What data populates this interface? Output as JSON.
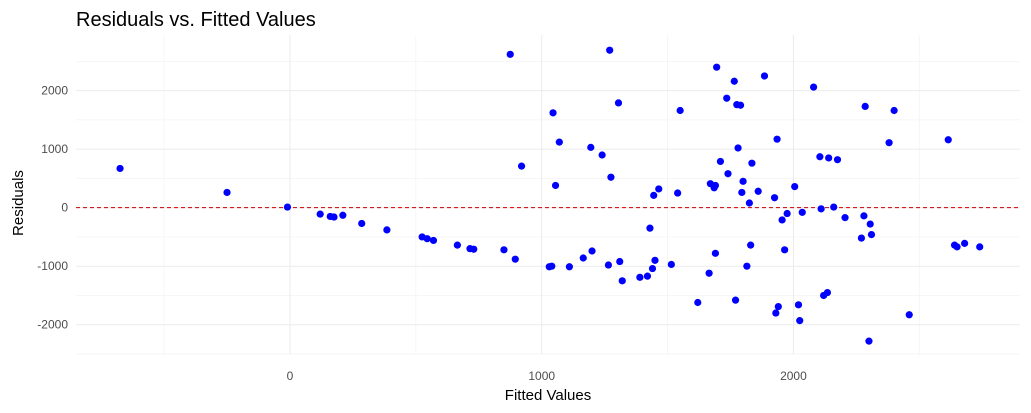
{
  "chart_data": {
    "type": "scatter",
    "title": "Residuals vs. Fitted Values",
    "xlabel": "Fitted Values",
    "ylabel": "Residuals",
    "xlim": [
      -850,
      2900
    ],
    "ylim": [
      -2500,
      2950
    ],
    "x_ticks": [
      0,
      1000,
      2000
    ],
    "y_ticks": [
      -2000,
      -1000,
      0,
      1000,
      2000
    ],
    "x_tick_labels": [
      "0",
      "1000",
      "2000"
    ],
    "y_tick_labels": [
      "-2000",
      "-1000",
      "0",
      "1000",
      "2000"
    ],
    "grid": true,
    "reference_line": {
      "y": 0,
      "style": "dashed",
      "color": "#cc0000"
    },
    "point_color": "#0000ff",
    "points": [
      {
        "x": -675,
        "y": 670
      },
      {
        "x": -250,
        "y": 260
      },
      {
        "x": -10,
        "y": 10
      },
      {
        "x": 120,
        "y": -110
      },
      {
        "x": 160,
        "y": -150
      },
      {
        "x": 175,
        "y": -160
      },
      {
        "x": 210,
        "y": -130
      },
      {
        "x": 285,
        "y": -270
      },
      {
        "x": 385,
        "y": -380
      },
      {
        "x": 525,
        "y": -500
      },
      {
        "x": 545,
        "y": -530
      },
      {
        "x": 570,
        "y": -560
      },
      {
        "x": 665,
        "y": -640
      },
      {
        "x": 715,
        "y": -700
      },
      {
        "x": 730,
        "y": -710
      },
      {
        "x": 850,
        "y": -720
      },
      {
        "x": 875,
        "y": 2620
      },
      {
        "x": 895,
        "y": -880
      },
      {
        "x": 920,
        "y": 710
      },
      {
        "x": 1030,
        "y": -1010
      },
      {
        "x": 1040,
        "y": -1000
      },
      {
        "x": 1045,
        "y": 1620
      },
      {
        "x": 1055,
        "y": 380
      },
      {
        "x": 1070,
        "y": 1120
      },
      {
        "x": 1110,
        "y": -1010
      },
      {
        "x": 1165,
        "y": -860
      },
      {
        "x": 1195,
        "y": 1030
      },
      {
        "x": 1200,
        "y": -740
      },
      {
        "x": 1240,
        "y": 900
      },
      {
        "x": 1265,
        "y": -980
      },
      {
        "x": 1270,
        "y": 2690
      },
      {
        "x": 1275,
        "y": 520
      },
      {
        "x": 1305,
        "y": 1790
      },
      {
        "x": 1310,
        "y": -920
      },
      {
        "x": 1320,
        "y": -1250
      },
      {
        "x": 1390,
        "y": -1190
      },
      {
        "x": 1420,
        "y": -1170
      },
      {
        "x": 1430,
        "y": -350
      },
      {
        "x": 1440,
        "y": -1040
      },
      {
        "x": 1445,
        "y": 210
      },
      {
        "x": 1450,
        "y": -900
      },
      {
        "x": 1465,
        "y": 320
      },
      {
        "x": 1515,
        "y": -970
      },
      {
        "x": 1540,
        "y": 250
      },
      {
        "x": 1550,
        "y": 1660
      },
      {
        "x": 1620,
        "y": -1620
      },
      {
        "x": 1665,
        "y": -1120
      },
      {
        "x": 1670,
        "y": 410
      },
      {
        "x": 1685,
        "y": 340
      },
      {
        "x": 1690,
        "y": 380
      },
      {
        "x": 1690,
        "y": -780
      },
      {
        "x": 1695,
        "y": 2400
      },
      {
        "x": 1710,
        "y": 790
      },
      {
        "x": 1735,
        "y": 1870
      },
      {
        "x": 1740,
        "y": 580
      },
      {
        "x": 1765,
        "y": 2160
      },
      {
        "x": 1770,
        "y": -1580
      },
      {
        "x": 1775,
        "y": 1760
      },
      {
        "x": 1780,
        "y": 1020
      },
      {
        "x": 1790,
        "y": 1750
      },
      {
        "x": 1795,
        "y": 260
      },
      {
        "x": 1800,
        "y": 450
      },
      {
        "x": 1815,
        "y": -1000
      },
      {
        "x": 1825,
        "y": 80
      },
      {
        "x": 1830,
        "y": -640
      },
      {
        "x": 1835,
        "y": 760
      },
      {
        "x": 1860,
        "y": 280
      },
      {
        "x": 1885,
        "y": 2250
      },
      {
        "x": 1925,
        "y": 170
      },
      {
        "x": 1930,
        "y": -1800
      },
      {
        "x": 1935,
        "y": 1170
      },
      {
        "x": 1940,
        "y": -1690
      },
      {
        "x": 1955,
        "y": -210
      },
      {
        "x": 1965,
        "y": -720
      },
      {
        "x": 1975,
        "y": -100
      },
      {
        "x": 2005,
        "y": 360
      },
      {
        "x": 2020,
        "y": -1660
      },
      {
        "x": 2025,
        "y": -1930
      },
      {
        "x": 2035,
        "y": -80
      },
      {
        "x": 2080,
        "y": 2060
      },
      {
        "x": 2105,
        "y": 870
      },
      {
        "x": 2110,
        "y": -20
      },
      {
        "x": 2120,
        "y": -1500
      },
      {
        "x": 2135,
        "y": -1450
      },
      {
        "x": 2140,
        "y": 850
      },
      {
        "x": 2160,
        "y": 10
      },
      {
        "x": 2175,
        "y": 820
      },
      {
        "x": 2205,
        "y": -170
      },
      {
        "x": 2270,
        "y": -520
      },
      {
        "x": 2280,
        "y": -140
      },
      {
        "x": 2285,
        "y": 1730
      },
      {
        "x": 2300,
        "y": -2280
      },
      {
        "x": 2305,
        "y": -280
      },
      {
        "x": 2310,
        "y": -460
      },
      {
        "x": 2380,
        "y": 1110
      },
      {
        "x": 2400,
        "y": 1660
      },
      {
        "x": 2460,
        "y": -1830
      },
      {
        "x": 2615,
        "y": 1160
      },
      {
        "x": 2640,
        "y": -640
      },
      {
        "x": 2650,
        "y": -670
      },
      {
        "x": 2680,
        "y": -610
      },
      {
        "x": 2740,
        "y": -670
      }
    ]
  }
}
